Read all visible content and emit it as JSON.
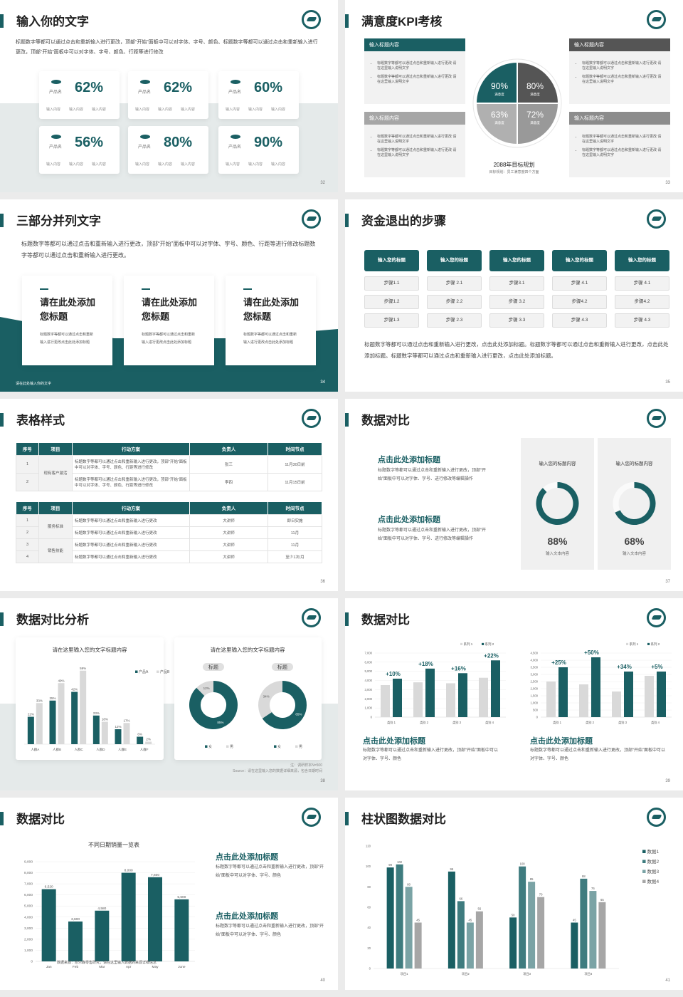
{
  "colors": {
    "teal": "#1a5f63",
    "dark_gray": "#555555",
    "mid_gray": "#a6a6a6",
    "light_gray": "#d9d9d9",
    "bg_gray": "#e5eaea"
  },
  "slides": {
    "s32": {
      "title": "输入你的文字",
      "page": "32",
      "desc": "标题数字等都可以通过点击和重新输入进行更改，顶部“开始”面板中可以对字体、字号、颜色、标题数字等都可以通过点击和重新输入进行更改，顶部“开始”面板中可以对字体、字号、颜色、行距等进行修改",
      "cards": [
        {
          "pct": "62%",
          "name": "产品名",
          "items": [
            "输入内容",
            "输入内容",
            "输入内容"
          ]
        },
        {
          "pct": "62%",
          "name": "产品名",
          "items": [
            "输入内容",
            "输入内容",
            "输入内容"
          ]
        },
        {
          "pct": "60%",
          "name": "产品名",
          "items": [
            "输入内容",
            "输入内容",
            "输入内容"
          ]
        },
        {
          "pct": "56%",
          "name": "产品名",
          "items": [
            "输入内容",
            "输入内容",
            "输入内容"
          ]
        },
        {
          "pct": "80%",
          "name": "产品名",
          "items": [
            "输入内容",
            "输入内容",
            "输入内容"
          ]
        },
        {
          "pct": "90%",
          "name": "产品名",
          "items": [
            "输入内容",
            "输入内容",
            "输入内容"
          ]
        }
      ]
    },
    "s33": {
      "title": "满意度KPI考核",
      "page": "33",
      "boxes": [
        {
          "header": "输入标题内容",
          "bullets": [
            "标题数字等都可以通过点击和重新输入进行更改 请在这里输入说明文字",
            "标题数字等都可以通过点击和重新输入进行更改 请在这里输入说明文字"
          ]
        },
        {
          "header": "输入标题内容",
          "bullets": [
            "标题数字等都可以通过点击和重新输入进行更改 请在这里输入说明文字",
            "标题数字等都可以通过点击和重新输入进行更改 请在这里输入说明文字"
          ]
        },
        {
          "header": "输入标题内容",
          "bullets": [
            "标题数字等都可以通过点击和重新输入进行更改 请在这里输入说明文字",
            "标题数字等都可以通过点击和重新输入进行更改 请在这里输入说明文字"
          ]
        },
        {
          "header": "输入标题内容",
          "bullets": [
            "标题数字等都可以通过点击和重新输入进行更改 请在这里输入说明文字",
            "标题数字等都可以通过点击和重新输入进行更改 请在这里输入说明文字"
          ]
        }
      ],
      "quadrants": [
        {
          "value": "90%",
          "label": "满意度"
        },
        {
          "value": "80%",
          "label": "满意度"
        },
        {
          "value": "63%",
          "label": "满意度"
        },
        {
          "value": "72%",
          "label": "满意度"
        }
      ],
      "center_title": "2088年目标规划",
      "center_sub": "目标规划：员工满意度四个方面"
    },
    "s34": {
      "title": "三部分并列文字",
      "page": "34",
      "desc": "标题数字等都可以通过点击和重新输入进行更改，顶部“开始”面板中可以对字体、字号、颜色、行距等进行修改标题数字等都可以通过点击和重新输入进行更改。",
      "cards": [
        {
          "title": "请在此处添加您标题",
          "body": "标题数字等都可以通过点击和重新输入进行更改点击此处添加标题"
        },
        {
          "title": "请在此处添加您标题",
          "body": "标题数字等都可以通过点击和重新输入进行更改点击此处添加标题"
        },
        {
          "title": "请在此处添加您标题",
          "body": "标题数字等都可以通过点击和重新输入进行更改点击此处添加标题"
        }
      ],
      "footer": "请在此处输入你的文字"
    },
    "s35": {
      "title": "资金退出的步骤",
      "page": "35",
      "columns": [
        {
          "header": "输入您的标题",
          "steps": [
            "步骤1.1",
            "步骤1.2",
            "步骤1.3"
          ]
        },
        {
          "header": "输入您的标题",
          "steps": [
            "步骤 2.1",
            "步骤 2.2",
            "步骤 2.3"
          ]
        },
        {
          "header": "输入您的标题",
          "steps": [
            "步骤3.1",
            "步骤 3.2",
            "步骤 3.3"
          ]
        },
        {
          "header": "输入您的标题",
          "steps": [
            "步骤 4.1",
            "步骤4.2",
            "步骤 4.3"
          ]
        },
        {
          "header": "输入您的标题",
          "steps": [
            "步骤 4.1",
            "步骤4.2",
            "步骤 4.3"
          ]
        }
      ],
      "desc": "标题数字等都可以通过点击和重新输入进行更改，点击此处添加标题。标题数字等都可以通过点击和重新输入进行更改，点击此处添加标题。标题数字等都可以通过点击和重新输入进行更改，点击此处添加标题。"
    },
    "s36": {
      "title": "表格样式",
      "page": "36",
      "headers": [
        "序号",
        "项目",
        "行动方案",
        "负责人",
        "时间节点"
      ],
      "table1": {
        "groups": [
          {
            "project": "现有客户激活",
            "rows": [
              [
                "1",
                "标题数字等都可以通过点击和重新输入进行更改，顶部“开始”面板中可以对字体、字号、颜色、行距等进行修改",
                "张三",
                "11月30日前"
              ],
              [
                "2",
                "标题数字等都可以通过点击和重新输入进行更改，顶部“开始”面板中可以对字体、字号、颜色、行距等进行修改",
                "李四",
                "11月15日前"
              ]
            ]
          }
        ]
      },
      "table2": {
        "groups": [
          {
            "project": "服务标准",
            "rows": [
              [
                "1",
                "标题数字等都可以通过点击和重新输入进行更改",
                "大讲师",
                "即日实施"
              ],
              [
                "2",
                "标题数字等都可以通过点击和重新输入进行更改",
                "大讲师",
                "11月"
              ]
            ]
          },
          {
            "project": "销售技能",
            "rows": [
              [
                "3",
                "标题数字等都可以通过点击和重新输入进行更改",
                "大讲师",
                "11月"
              ],
              [
                "4",
                "标题数字等都可以通过点击和重新输入进行更改",
                "大讲师",
                "至少1次/月"
              ]
            ]
          }
        ]
      }
    },
    "s37": {
      "title": "数据对比",
      "page": "37",
      "blocks": [
        {
          "heading": "点击此处添加标题",
          "body": "标题数字等都可以通过点击和重新输入进行更改，顶部“开始”面板中可以对字体、字号、进行修改等编辑操作"
        },
        {
          "heading": "点击此处添加标题",
          "body": "标题数字等都可以通过点击和重新输入进行更改，顶部“开始”面板中可以对字体、字号、进行修改等编辑操作"
        }
      ],
      "cards": [
        {
          "title": "输入您的标题内容",
          "value": "88%",
          "percent": 88,
          "caption": "输入文本内容"
        },
        {
          "title": "输入您的标题内容",
          "value": "68%",
          "percent": 68,
          "caption": "输入文本内容"
        }
      ]
    },
    "s38": {
      "title": "数据对比分析",
      "page": "38",
      "note": "注：调研样本N=500",
      "source": "Source：请在这里输入您的数据详细来源，包含日期时间"
    },
    "s39": {
      "title": "数据对比",
      "page": "39",
      "blocks": [
        {
          "heading": "点击此处添加标题",
          "body": "标题数字等都可以通过点击和重新输入进行更改，顶部“开始”面板中可以对字体、字号、颜色"
        },
        {
          "heading": "点击此处添加标题",
          "body": "标题数字等都可以通过点击和重新输入进行更改，顶部“开始”面板中可以对字体、字号、颜色"
        }
      ]
    },
    "s40": {
      "title": "数据对比",
      "page": "40",
      "source": "数据来源：尼尔森零售研究，请在这里输入数据的来源详细信息",
      "blocks": [
        {
          "heading": "点击此处添加标题",
          "body": "标题数字等都可以通过点击和重新输入进行更改，顶部“开始”面板中可以对字体、字号、颜色"
        },
        {
          "heading": "点击此处添加标题",
          "body": "标题数字等都可以通过点击和重新输入进行更改，顶部“开始”面板中可以对字体、字号、颜色"
        }
      ]
    },
    "s41": {
      "title": "柱状图数据对比",
      "page": "41"
    }
  },
  "chart_data": [
    {
      "id": "s38-bar",
      "type": "bar",
      "title": "请在这里输入您的文字标题内容",
      "categories": [
        "人群A",
        "人群B",
        "人群C",
        "人群D",
        "人群E",
        "人群F"
      ],
      "series": [
        {
          "name": "产品A",
          "values": [
            22,
            35,
            42,
            23,
            12,
            6
          ]
        },
        {
          "name": "产品B",
          "values": [
            33,
            49,
            59,
            18,
            17,
            2
          ]
        }
      ],
      "unit": "%",
      "ylim": [
        0,
        60
      ],
      "legend": "top-right",
      "grid": false
    },
    {
      "id": "s38-pie",
      "type": "pie",
      "title": "请在这里输入您的文字标题内容",
      "pies": [
        {
          "label": "标题",
          "slices": [
            {
              "name": "女",
              "value": 85
            },
            {
              "name": "男",
              "value": 12
            }
          ]
        },
        {
          "label": "标题",
          "slices": [
            {
              "name": "女",
              "value": 65
            },
            {
              "name": "男",
              "value": 34
            }
          ]
        }
      ]
    },
    {
      "id": "s39-bar-a",
      "type": "bar",
      "categories": [
        "类别 1",
        "类别 2",
        "类别 3",
        "类别 4"
      ],
      "series": [
        {
          "name": "系列 1",
          "values": [
            3500,
            3800,
            3700,
            4300
          ]
        },
        {
          "name": "系列 2",
          "values": [
            4200,
            5300,
            4800,
            6200
          ]
        }
      ],
      "annotations": [
        "+10%",
        "+18%",
        "+16%",
        "+22%"
      ],
      "ylim": [
        0,
        7000
      ],
      "ytick_step": 1000,
      "legend": "top-right",
      "grid": true
    },
    {
      "id": "s39-bar-b",
      "type": "bar",
      "categories": [
        "类别 1",
        "类别 2",
        "类别 3",
        "类别 4"
      ],
      "series": [
        {
          "name": "系列 1",
          "values": [
            2500,
            2300,
            1800,
            2900
          ]
        },
        {
          "name": "系列 2",
          "values": [
            3500,
            4200,
            3200,
            3200
          ]
        }
      ],
      "annotations": [
        "+25%",
        "+50%",
        "+34%",
        "+5%"
      ],
      "ylim": [
        0,
        4500
      ],
      "ytick_step": 500,
      "legend": "top-right",
      "grid": true
    },
    {
      "id": "s40-bar",
      "type": "bar",
      "title": "不同日期销量一览表",
      "categories": [
        "Jan",
        "Feb",
        "Mar",
        "Apr",
        "May",
        "June"
      ],
      "series": [
        {
          "values": [
            6520,
            3600,
            4580,
            8000,
            7600,
            5600
          ]
        }
      ],
      "ylim": [
        0,
        9000
      ],
      "ytick_step": 1000,
      "grid": true
    },
    {
      "id": "s41-bar",
      "type": "bar",
      "categories": [
        "项目1",
        "项目2",
        "项目3",
        "项目4"
      ],
      "series": [
        {
          "name": "数据1",
          "values": [
            99,
            95,
            50,
            45
          ]
        },
        {
          "name": "数据2",
          "values": [
            102,
            66,
            100,
            88
          ]
        },
        {
          "name": "数据3",
          "values": [
            80,
            45,
            85,
            76
          ]
        },
        {
          "name": "数据4",
          "values": [
            45,
            56,
            70,
            65
          ]
        }
      ],
      "ylim": [
        0,
        120
      ],
      "ytick_step": 20,
      "legend": "right",
      "grid": false
    }
  ]
}
